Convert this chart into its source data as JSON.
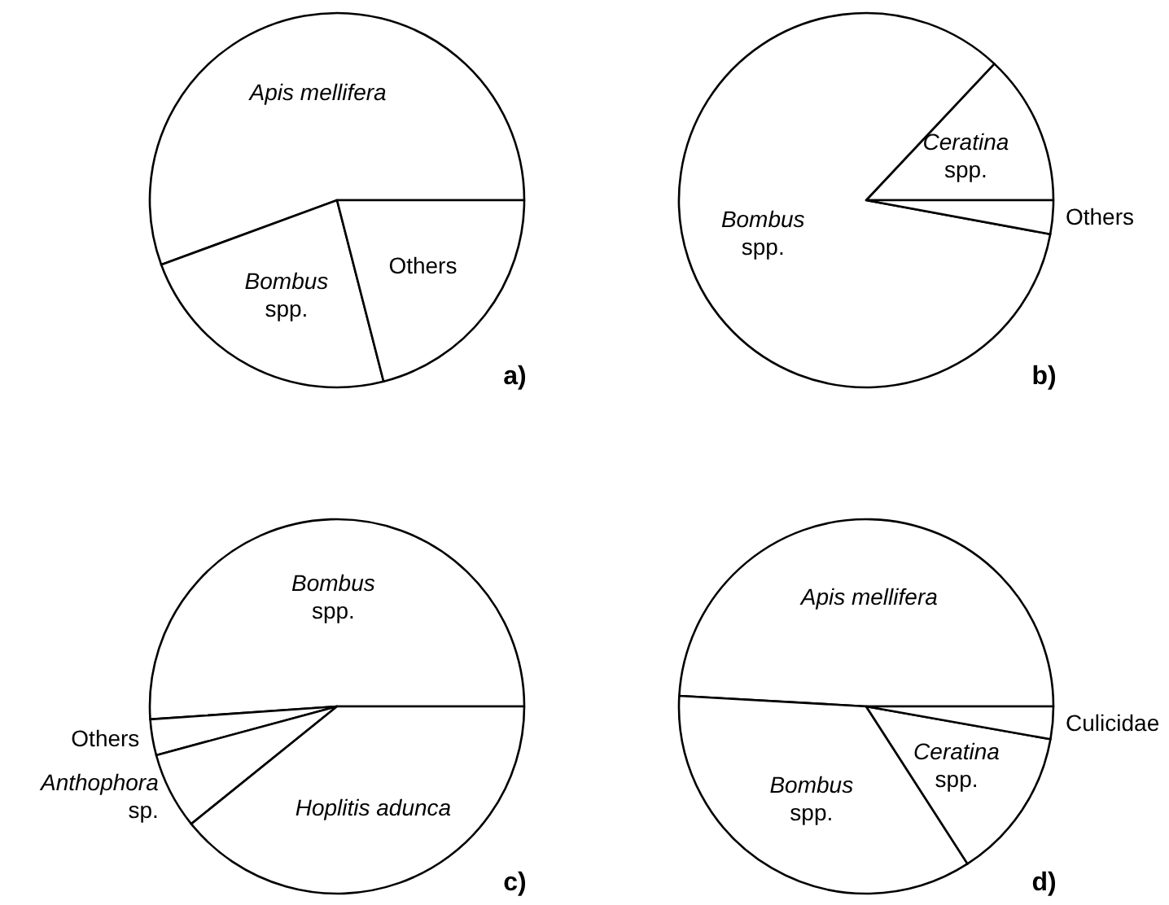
{
  "chart_data": [
    {
      "type": "pie",
      "title": "a)",
      "categories": [
        "Apis mellifera",
        "Bombus spp.",
        "Others"
      ],
      "values": [
        55.6,
        23.4,
        21.0
      ],
      "colors": [
        "#ffffff",
        "#ffffff",
        "#ffffff"
      ]
    },
    {
      "type": "pie",
      "title": "b)",
      "categories": [
        "Ceratina spp.",
        "Bombus spp.",
        "Others"
      ],
      "values": [
        13.0,
        84.1,
        2.9
      ],
      "colors": [
        "#ffffff",
        "#ffffff",
        "#ffffff"
      ]
    },
    {
      "type": "pie",
      "title": "c)",
      "categories": [
        "Bombus spp.",
        "Others",
        "Anthophora sp.",
        "Hoplitis adunca"
      ],
      "values": [
        51.1,
        3.1,
        6.6,
        39.2
      ],
      "colors": [
        "#ffffff",
        "#ffffff",
        "#ffffff",
        "#ffffff"
      ]
    },
    {
      "type": "pie",
      "title": "d)",
      "categories": [
        "Apis mellifera",
        "Bombus spp.",
        "Ceratina spp.",
        "Culicidae"
      ],
      "values": [
        49.1,
        35.0,
        13.1,
        2.8
      ],
      "colors": [
        "#ffffff",
        "#ffffff",
        "#ffffff",
        "#ffffff"
      ]
    }
  ]
}
